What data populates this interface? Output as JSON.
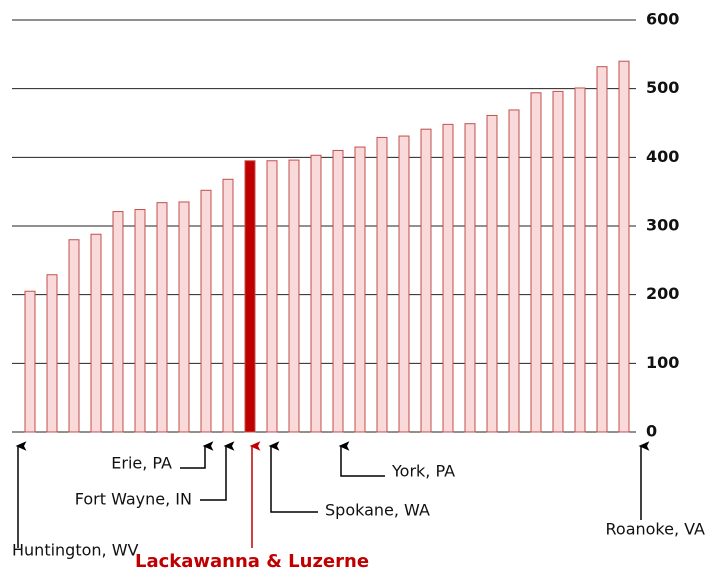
{
  "chart_data": {
    "type": "bar",
    "categories": [
      "Huntington, WV",
      null,
      null,
      null,
      null,
      null,
      null,
      null,
      "Erie, PA",
      "Fort Wayne, IN",
      "Lackawanna & Luzerne",
      "Spokane, WA",
      null,
      null,
      "York, PA",
      null,
      null,
      null,
      null,
      null,
      null,
      null,
      null,
      null,
      null,
      null,
      null,
      "Roanoke, VA"
    ],
    "values": [
      205,
      229,
      280,
      288,
      321,
      324,
      334,
      335,
      352,
      368,
      395,
      395,
      396,
      403,
      410,
      415,
      429,
      431,
      441,
      448,
      449,
      461,
      469,
      494,
      496,
      501,
      532,
      540
    ],
    "colors": [
      "#f9d9d9",
      "#f9d9d9",
      "#f9d9d9",
      "#f9d9d9",
      "#f9d9d9",
      "#f9d9d9",
      "#f9d9d9",
      "#f9d9d9",
      "#f9d9d9",
      "#f9d9d9",
      "#c00000",
      "#f9d9d9",
      "#f9d9d9",
      "#f9d9d9",
      "#f9d9d9",
      "#f9d9d9",
      "#f9d9d9",
      "#f9d9d9",
      "#f9d9d9",
      "#f9d9d9",
      "#f9d9d9",
      "#f9d9d9",
      "#f9d9d9",
      "#f9d9d9",
      "#f9d9d9",
      "#f9d9d9",
      "#f9d9d9",
      "#f9d9d9"
    ],
    "ylim": [
      0,
      600
    ],
    "yticks": [
      0,
      100,
      200,
      300,
      400,
      500,
      600
    ],
    "grid": true
  }
}
